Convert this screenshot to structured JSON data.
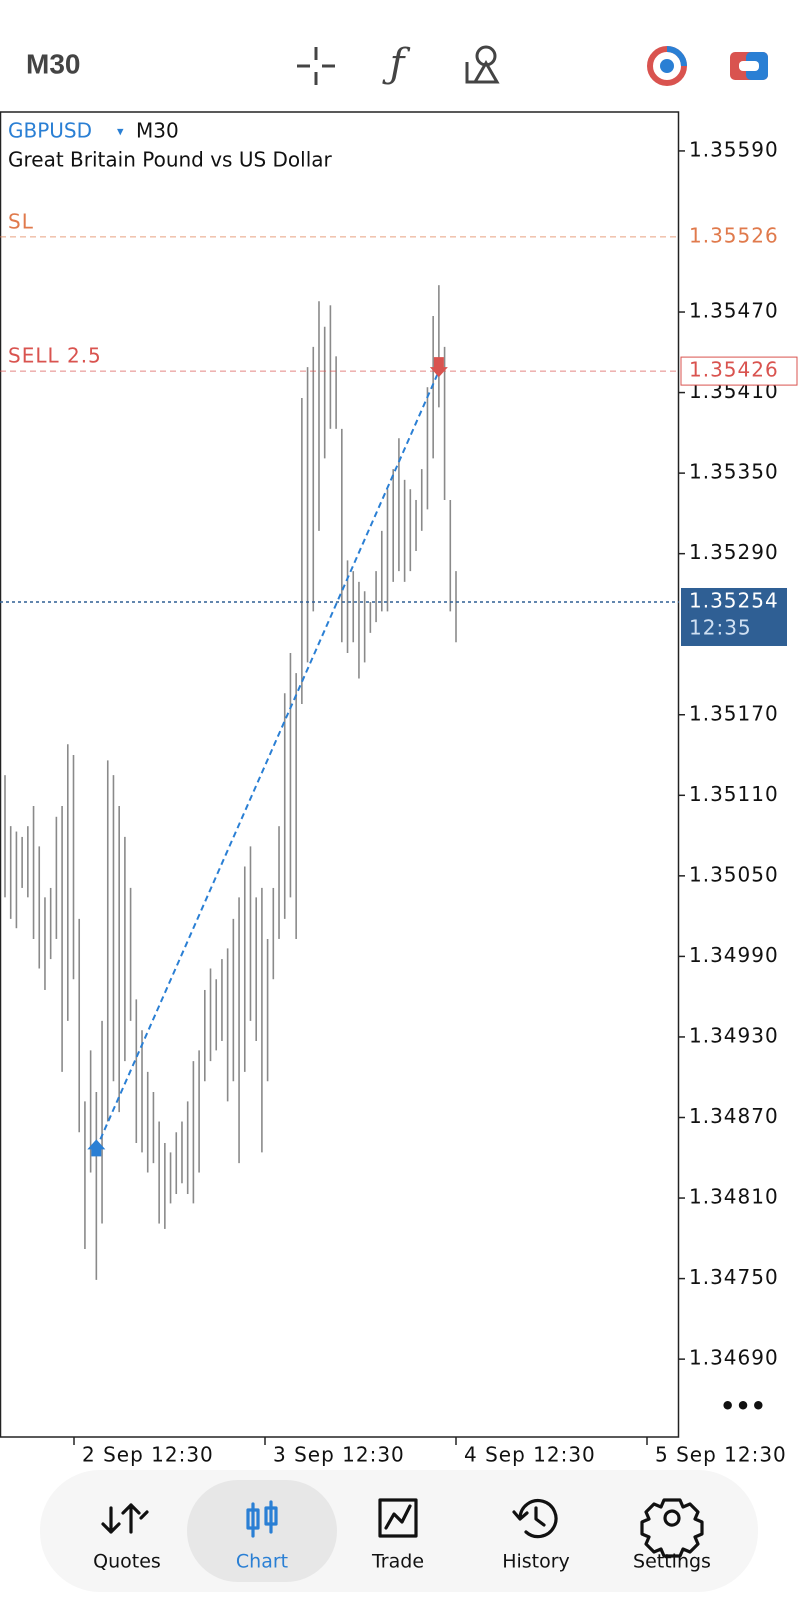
{
  "header": {
    "timeframe": "M30"
  },
  "chart_data": {
    "type": "ohlc",
    "symbol": "GBPUSD",
    "dropdown": "▾",
    "timeframe": "M30",
    "description": "Great Britain Pound vs US Dollar",
    "color": "#8a8a8a",
    "high": [
      1.35125,
      1.35087,
      1.35083,
      1.35079,
      1.35087,
      1.35102,
      1.35072,
      1.35034,
      1.35041,
      1.35094,
      1.35102,
      1.35148,
      1.3514,
      1.35018,
      1.34882,
      1.3492,
      1.34889,
      1.34942,
      1.35136,
      1.35125,
      1.35102,
      1.35079,
      1.35041,
      1.34958,
      1.34935,
      1.34904,
      1.34889,
      1.34867,
      1.34851,
      1.34844,
      1.34859,
      1.34867,
      1.34882,
      1.34912,
      1.3492,
      1.34965,
      1.34981,
      1.34973,
      1.34988,
      1.34996,
      1.35018,
      1.35034,
      1.35057,
      1.35072,
      1.35034,
      1.35041,
      1.35003,
      1.35041,
      1.35087,
      1.35186,
      1.35216,
      1.35201,
      1.35406,
      1.35429,
      1.35444,
      1.35478,
      1.35459,
      1.35475,
      1.35437,
      1.35383,
      1.35285,
      1.35277,
      1.35269,
      1.35262,
      1.35254,
      1.35277,
      1.35307,
      1.35338,
      1.35353,
      1.35376,
      1.35345,
      1.35338,
      1.3533,
      1.35353,
      1.35414,
      1.35467,
      1.3549,
      1.35444,
      1.3533,
      1.35277
    ],
    "low": [
      1.35034,
      1.35018,
      1.35011,
      1.35041,
      1.35034,
      1.35003,
      1.34981,
      1.34965,
      1.34988,
      1.35003,
      1.34904,
      1.34942,
      1.34973,
      1.34859,
      1.34772,
      1.34829,
      1.34749,
      1.34791,
      1.34867,
      1.34897,
      1.34874,
      1.34912,
      1.34942,
      1.34851,
      1.34844,
      1.34829,
      1.34836,
      1.34791,
      1.34787,
      1.34806,
      1.34813,
      1.34821,
      1.34813,
      1.34806,
      1.34829,
      1.34897,
      1.34912,
      1.3492,
      1.34927,
      1.34882,
      1.34897,
      1.34836,
      1.34904,
      1.34942,
      1.34927,
      1.34844,
      1.34897,
      1.34973,
      1.35003,
      1.35018,
      1.35034,
      1.35003,
      1.35178,
      1.35209,
      1.35247,
      1.35307,
      1.35361,
      1.35383,
      1.35383,
      1.35224,
      1.35216,
      1.35224,
      1.35197,
      1.35209,
      1.35231,
      1.35239,
      1.35247,
      1.35247,
      1.35269,
      1.35277,
      1.35269,
      1.35277,
      1.35292,
      1.35307,
      1.35323,
      1.35361,
      1.35399,
      1.3533,
      1.35247,
      1.35224
    ],
    "ylim": [
      1.34632,
      1.35619
    ],
    "yticks": [
      {
        "value": 1.3559,
        "label": "1.35590"
      },
      {
        "value": 1.3547,
        "label": "1.35470"
      },
      {
        "value": 1.3541,
        "label": "1.35410"
      },
      {
        "value": 1.3535,
        "label": "1.35350"
      },
      {
        "value": 1.3529,
        "label": "1.35290"
      },
      {
        "value": 1.3517,
        "label": "1.35170"
      },
      {
        "value": 1.3511,
        "label": "1.35110"
      },
      {
        "value": 1.3505,
        "label": "1.35050"
      },
      {
        "value": 1.3499,
        "label": "1.34990"
      },
      {
        "value": 1.3493,
        "label": "1.34930"
      },
      {
        "value": 1.3487,
        "label": "1.34870"
      },
      {
        "value": 1.3481,
        "label": "1.34810"
      },
      {
        "value": 1.3475,
        "label": "1.34750"
      },
      {
        "value": 1.3469,
        "label": "1.34690"
      }
    ],
    "x_labels": [
      "2 Sep 12:30",
      "3 Sep 12:30",
      "4 Sep 12:30",
      "5 Sep 12:30"
    ],
    "levels": [
      {
        "name": "SL",
        "value": 1.35526,
        "color": "#e07a4c"
      },
      {
        "name": "SELL 2.5",
        "value": 1.35426,
        "color": "#d9534f"
      }
    ],
    "bid": {
      "value": 1.35254,
      "time": "12:35",
      "color": "#2f5f94"
    },
    "trade": {
      "open": 1.34847,
      "close": 1.35426,
      "color": "#2a7fd4"
    },
    "menu": "•••"
  },
  "nav": {
    "items": [
      "Quotes",
      "Chart",
      "Trade",
      "History",
      "Settings"
    ],
    "active": 1
  }
}
